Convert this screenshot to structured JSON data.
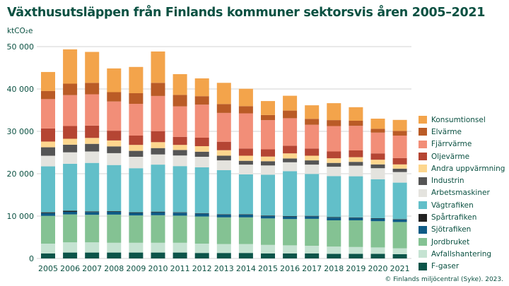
{
  "chart_data": {
    "type": "bar",
    "stacked": true,
    "title": "Växthusutsläppen från Finlands kommuner sektorsvis åren 2005–2021",
    "ylabel": "ktCO₂e",
    "xlabel": "",
    "ylim": [
      0,
      50000
    ],
    "yticks": [
      0,
      10000,
      20000,
      30000,
      40000,
      50000
    ],
    "ytick_labels": [
      "0",
      "10 000",
      "20 000",
      "30 000",
      "40 000",
      "50 000"
    ],
    "grid": true,
    "legend_position": "right",
    "categories": [
      "2005",
      "2006",
      "2007",
      "2008",
      "2009",
      "2010",
      "2011",
      "2012",
      "2013",
      "2014",
      "2015",
      "2016",
      "2017",
      "2018",
      "2019",
      "2020",
      "2021"
    ],
    "series": [
      {
        "name": "F-gaser",
        "color": "#0b5449",
        "values": [
          1200,
          1400,
          1400,
          1400,
          1400,
          1400,
          1400,
          1300,
          1300,
          1300,
          1200,
          1200,
          1200,
          1100,
          1100,
          1100,
          1000
        ]
      },
      {
        "name": "Avfallshantering",
        "color": "#c5e3d2",
        "values": [
          2300,
          2400,
          2400,
          2300,
          2300,
          2300,
          2300,
          2200,
          2100,
          2100,
          2000,
          1900,
          1800,
          1700,
          1600,
          1500,
          1400
        ]
      },
      {
        "name": "Jordbruket",
        "color": "#84c293",
        "values": [
          6550,
          6600,
          6500,
          6650,
          6450,
          6500,
          6400,
          6400,
          6300,
          6300,
          6250,
          6200,
          6350,
          6200,
          6300,
          6200,
          6200
        ]
      },
      {
        "name": "Sjötrafiken",
        "color": "#0f5b86",
        "values": [
          650,
          600,
          650,
          650,
          600,
          700,
          700,
          700,
          650,
          650,
          600,
          600,
          600,
          650,
          600,
          600,
          600
        ]
      },
      {
        "name": "Spårtrafiken",
        "color": "#222222",
        "values": [
          200,
          250,
          150,
          150,
          150,
          150,
          100,
          100,
          100,
          100,
          100,
          100,
          100,
          100,
          100,
          100,
          100
        ]
      },
      {
        "name": "Vägtrafiken",
        "color": "#62bfc9",
        "values": [
          10840,
          11100,
          11450,
          10900,
          10400,
          11100,
          10900,
          10800,
          10400,
          9400,
          9600,
          10600,
          9900,
          9700,
          9700,
          9200,
          8600
        ]
      },
      {
        "name": "Arbetsmaskiner",
        "color": "#e4e3de",
        "values": [
          2500,
          2700,
          2700,
          2800,
          2700,
          2400,
          2500,
          2500,
          2300,
          2300,
          2200,
          2100,
          2200,
          2200,
          2500,
          2600,
          2500
        ]
      },
      {
        "name": "Industrin",
        "color": "#555555",
        "values": [
          2000,
          1800,
          1800,
          1600,
          1400,
          1500,
          1300,
          1200,
          1100,
          900,
          1000,
          900,
          1000,
          900,
          900,
          900,
          800
        ]
      },
      {
        "name": "Andra uppvärmning",
        "color": "#fdd68e",
        "values": [
          1350,
          1400,
          1400,
          1400,
          1400,
          1400,
          1200,
          1300,
          1300,
          1200,
          1100,
          1200,
          1100,
          1100,
          1100,
          1100,
          1000
        ]
      },
      {
        "name": "Oljevärme",
        "color": "#b54533",
        "values": [
          3100,
          3000,
          2900,
          2300,
          2200,
          2600,
          1900,
          2000,
          2000,
          1700,
          1700,
          1800,
          1700,
          1600,
          1600,
          1500,
          1500
        ]
      },
      {
        "name": "Fjärrvärme",
        "color": "#f28e78",
        "values": [
          6920,
          7300,
          7400,
          6900,
          7500,
          8300,
          7200,
          7800,
          6800,
          8300,
          6900,
          6500,
          5600,
          6000,
          5800,
          4900,
          5300
        ]
      },
      {
        "name": "Elvärme",
        "color": "#ba5b26",
        "values": [
          1900,
          2700,
          2700,
          2200,
          2500,
          3100,
          2700,
          2000,
          2100,
          1700,
          1200,
          1800,
          1400,
          1400,
          1200,
          900,
          1100
        ]
      },
      {
        "name": "Konsumtionsel",
        "color": "#f3a44b",
        "values": [
          4500,
          8100,
          7300,
          5600,
          6200,
          7400,
          4900,
          4200,
          5000,
          4100,
          3300,
          3500,
          3200,
          4000,
          3200,
          2400,
          2600
        ]
      }
    ]
  },
  "legend_order": [
    "Konsumtionsel",
    "Elvärme",
    "Fjärrvärme",
    "Oljevärme",
    "Andra uppvärmning",
    "Industrin",
    "Arbetsmaskiner",
    "Vägtrafiken",
    "Spårtrafiken",
    "Sjötrafiken",
    "Jordbruket",
    "Avfallshantering",
    "F-gaser"
  ],
  "credit": "© Finlands miljöcentral (Syke). 2023."
}
